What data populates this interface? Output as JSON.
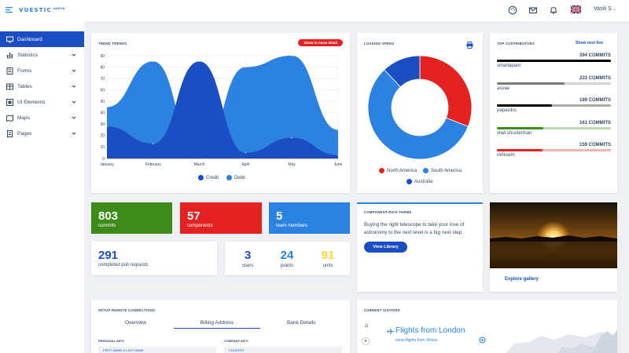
{
  "app": {
    "logo": "VUESTIC",
    "logo_sup": "ADMIN"
  },
  "header": {
    "user": "Vasili S",
    "icons": [
      "palette-icon",
      "mail-icon",
      "bell-icon",
      "uk-flag-icon"
    ]
  },
  "sidebar": {
    "items": [
      {
        "label": "Dashboard",
        "icon": "monitor-icon",
        "active": true
      },
      {
        "label": "Statistics",
        "icon": "bar-chart-icon"
      },
      {
        "label": "Forms",
        "icon": "form-icon"
      },
      {
        "label": "Tables",
        "icon": "table-icon"
      },
      {
        "label": "UI Elements",
        "icon": "ui-elements-icon"
      },
      {
        "label": "Maps",
        "icon": "map-icon"
      },
      {
        "label": "Pages",
        "icon": "pages-icon"
      }
    ]
  },
  "trend": {
    "title": "TREND TRENDS",
    "button": "Show in more detail",
    "legend": [
      "Credit",
      "Debit"
    ]
  },
  "loading": {
    "title": "LOADING SPEED",
    "legend": [
      "North America",
      "South America",
      "Australia"
    ]
  },
  "contributors": {
    "title": "TOP CONTRIBUTORS",
    "link": "Show next five",
    "rows": [
      {
        "commits": "394 COMMITS",
        "name": "smartapant",
        "color": "#000000",
        "fraction": 1.0
      },
      {
        "commits": "233 COMMITS",
        "name": "asvae",
        "color": "#7a7a7a",
        "fraction": 0.59
      },
      {
        "commits": "189 COMMITS",
        "name": "papasikis",
        "color": "#000000",
        "fraction": 0.48
      },
      {
        "commits": "161 COMMITS",
        "name": "vlad-shusterman",
        "color": "#3a8e1c",
        "fraction": 0.41
      },
      {
        "commits": "159 COMMITS",
        "name": "m0ksem",
        "color": "#e42222",
        "fraction": 0.4
      }
    ]
  },
  "stats": [
    {
      "value": "803",
      "label": "commits",
      "color": "#3d8c1a"
    },
    {
      "value": "57",
      "label": "components",
      "color": "#e42222"
    },
    {
      "value": "5",
      "label": "team members",
      "color": "#2c82e0"
    }
  ],
  "pull": {
    "value": "291",
    "label": "completed pull requests"
  },
  "kpis": [
    {
      "value": "3",
      "label": "users",
      "color": "#1a4ec2"
    },
    {
      "value": "24",
      "label": "points",
      "color": "#2c82e0"
    },
    {
      "value": "91",
      "label": "units",
      "color": "#ffd43a"
    }
  ],
  "theme": {
    "title": "COMPONENT-RICH THEME",
    "text": "Buying the right telescope to take your love of astronomy to the next level is a big next step.",
    "button": "View Library"
  },
  "gallery": {
    "link": "Explore gallery"
  },
  "remote": {
    "title": "SETUP REMOTE CONNECTIONS",
    "tabs": [
      "Overview",
      "Billing Address",
      "Bank Details"
    ],
    "personal": "PERSONAL INFO",
    "company": "COMPANY INFO",
    "field1": "FIRST NAME & LAST NAME",
    "field2": "COUNTRY"
  },
  "visitors": {
    "title": "CURRENT VISITORS",
    "flight": "Flights from London",
    "sub": "show flights from Vilnius"
  },
  "chart_data": [
    {
      "type": "area",
      "title": "TREND TRENDS",
      "categories": [
        "January",
        "February",
        "March",
        "April",
        "May",
        "June"
      ],
      "ylim": [
        0,
        90
      ],
      "yticks": [
        0,
        10,
        20,
        30,
        40,
        50,
        60,
        70,
        80,
        90
      ],
      "series": [
        {
          "name": "Credit",
          "values": [
            28,
            13,
            85,
            5,
            18,
            3
          ],
          "color": "#1a4ec2"
        },
        {
          "name": "Debit",
          "values": [
            45,
            85,
            2,
            80,
            90,
            25
          ],
          "color": "#2c82e0"
        }
      ],
      "legend": "bottom",
      "grid": true
    },
    {
      "type": "pie",
      "title": "LOADING SPEED",
      "categories": [
        "North America",
        "South America",
        "Australia"
      ],
      "values": [
        31,
        57,
        12
      ],
      "colors": [
        "#e42222",
        "#2c82e0",
        "#1a4ec2"
      ],
      "legend": "bottom"
    }
  ]
}
